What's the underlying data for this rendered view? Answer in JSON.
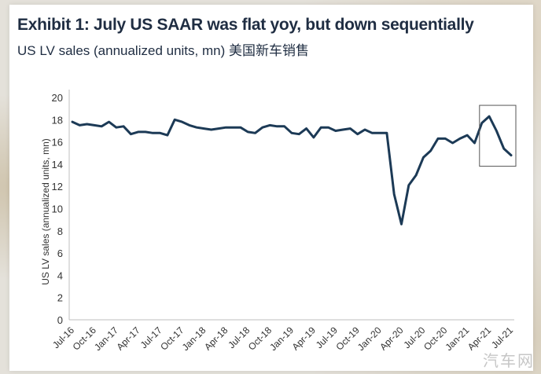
{
  "title": "Exhibit 1: July US SAAR was flat yoy, but down sequentially",
  "subtitle": "US LV sales (annualized units, mn) 美国新车销售",
  "watermark": "汽车网",
  "chart_data": {
    "type": "line",
    "title": "Exhibit 1: July US SAAR was flat yoy, but down sequentially",
    "subtitle": "US LV sales (annualized units, mn)",
    "ylabel": "US LV sales (annualized units, mn)",
    "xlabel": "",
    "ylim": [
      0,
      20
    ],
    "yticks": [
      0,
      2,
      4,
      6,
      8,
      10,
      12,
      14,
      16,
      18,
      20
    ],
    "grid": false,
    "legend": "none",
    "line_color": "#1c3a56",
    "xtick_labels": [
      "Jul-16",
      "Oct-16",
      "Jan-17",
      "Apr-17",
      "Jul-17",
      "Oct-17",
      "Jan-18",
      "Apr-18",
      "Jul-18",
      "Oct-18",
      "Jan-19",
      "Apr-19",
      "Jul-19",
      "Oct-19",
      "Jan-20",
      "Apr-20",
      "Jul-20",
      "Oct-20",
      "Jan-21",
      "Apr-21",
      "Jul-21"
    ],
    "highlight": {
      "from": "Mar-21",
      "to": "Jul-21"
    },
    "series": [
      {
        "name": "US LV sales",
        "x": [
          "Jul-16",
          "Aug-16",
          "Sep-16",
          "Oct-16",
          "Nov-16",
          "Dec-16",
          "Jan-17",
          "Feb-17",
          "Mar-17",
          "Apr-17",
          "May-17",
          "Jun-17",
          "Jul-17",
          "Aug-17",
          "Sep-17",
          "Oct-17",
          "Nov-17",
          "Dec-17",
          "Jan-18",
          "Feb-18",
          "Mar-18",
          "Apr-18",
          "May-18",
          "Jun-18",
          "Jul-18",
          "Aug-18",
          "Sep-18",
          "Oct-18",
          "Nov-18",
          "Dec-18",
          "Jan-19",
          "Feb-19",
          "Mar-19",
          "Apr-19",
          "May-19",
          "Jun-19",
          "Jul-19",
          "Aug-19",
          "Sep-19",
          "Oct-19",
          "Nov-19",
          "Dec-19",
          "Jan-20",
          "Feb-20",
          "Mar-20",
          "Apr-20",
          "May-20",
          "Jun-20",
          "Jul-20",
          "Aug-20",
          "Sep-20",
          "Oct-20",
          "Nov-20",
          "Dec-20",
          "Jan-21",
          "Feb-21",
          "Mar-21",
          "Apr-21",
          "May-21",
          "Jun-21",
          "Jul-21"
        ],
        "values": [
          17.8,
          17.5,
          17.6,
          17.5,
          17.4,
          17.8,
          17.3,
          17.4,
          16.7,
          16.9,
          16.9,
          16.8,
          16.8,
          16.6,
          18.0,
          17.8,
          17.5,
          17.3,
          17.2,
          17.1,
          17.2,
          17.3,
          17.3,
          17.3,
          16.9,
          16.8,
          17.3,
          17.5,
          17.4,
          17.4,
          16.8,
          16.7,
          17.2,
          16.4,
          17.3,
          17.3,
          17.0,
          17.1,
          17.2,
          16.7,
          17.1,
          16.8,
          16.8,
          16.8,
          11.3,
          8.6,
          12.1,
          13.0,
          14.6,
          15.2,
          16.3,
          16.3,
          15.9,
          16.3,
          16.6,
          15.9,
          17.7,
          18.3,
          17.0,
          15.4,
          14.8
        ]
      }
    ]
  }
}
